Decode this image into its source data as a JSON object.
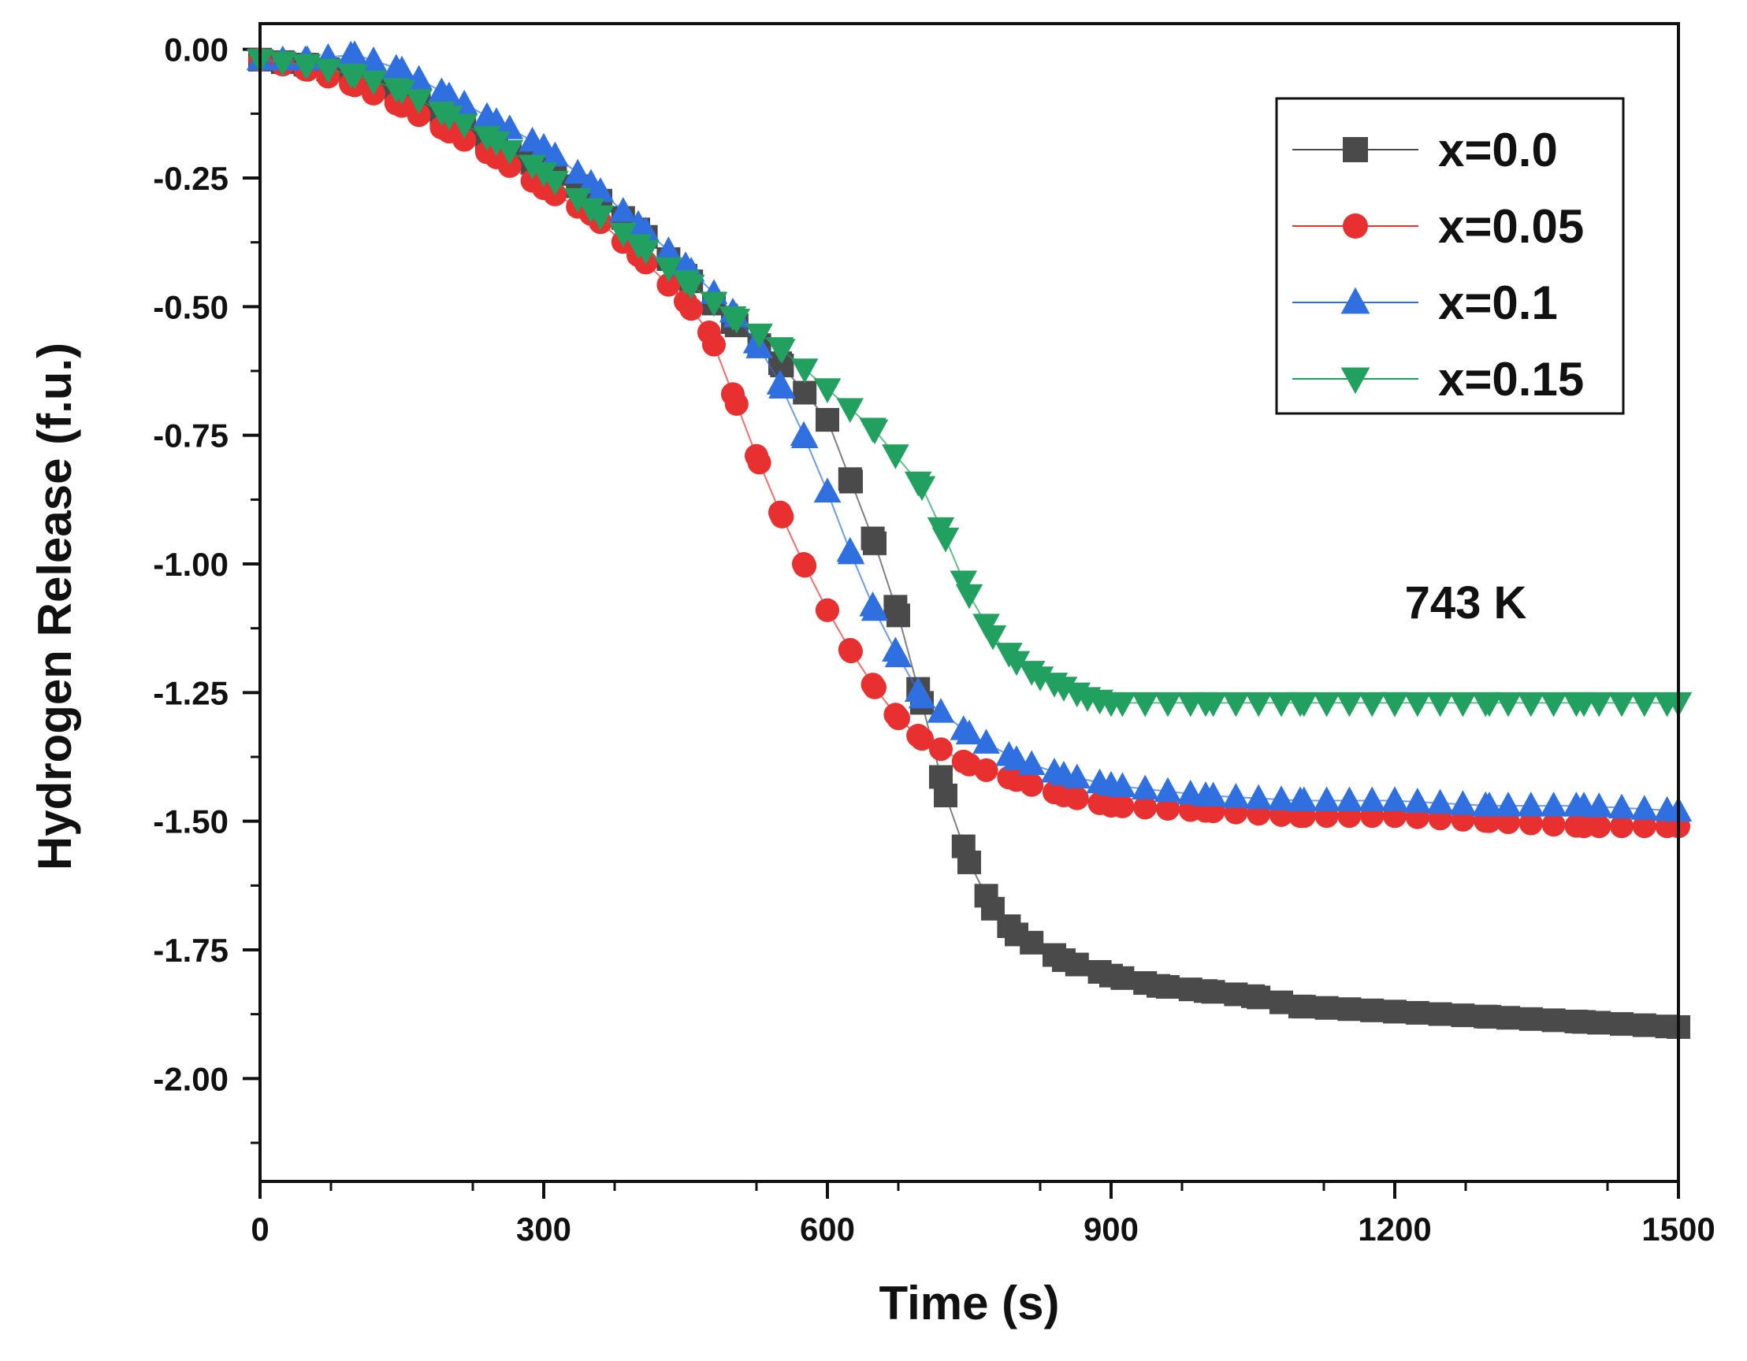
{
  "chart_data": {
    "type": "line",
    "title": "",
    "xlabel": "Time (s)",
    "ylabel": "Hydrogen Release (f.u.)",
    "xlim": [
      0,
      1500
    ],
    "ylim": [
      -2.2,
      0.05
    ],
    "xticks": [
      0,
      300,
      600,
      900,
      1200,
      1500
    ],
    "xtick_labels": [
      "0",
      "300",
      "600",
      "900",
      "1200",
      "1500"
    ],
    "yticks": [
      0.0,
      -0.25,
      -0.5,
      -0.75,
      -1.0,
      -1.25,
      -1.5,
      -1.75,
      -2.0
    ],
    "ytick_labels": [
      "0.00",
      "-0.25",
      "-0.50",
      "-0.75",
      "-1.00",
      "-1.25",
      "-1.50",
      "-1.75",
      "-2.00"
    ],
    "annotation": "743 K",
    "legend_position": "top-right",
    "series": [
      {
        "name": "x=0.0",
        "color": "#4a4a4a",
        "marker": "square",
        "x": [
          0,
          50,
          100,
          150,
          200,
          250,
          300,
          350,
          400,
          450,
          500,
          550,
          600,
          625,
          650,
          675,
          700,
          725,
          750,
          775,
          800,
          850,
          900,
          950,
          1000,
          1050,
          1100,
          1200,
          1300,
          1400,
          1500
        ],
        "y": [
          -0.02,
          -0.03,
          -0.05,
          -0.09,
          -0.14,
          -0.19,
          -0.23,
          -0.28,
          -0.35,
          -0.44,
          -0.53,
          -0.61,
          -0.72,
          -0.84,
          -0.96,
          -1.1,
          -1.27,
          -1.45,
          -1.58,
          -1.67,
          -1.72,
          -1.77,
          -1.8,
          -1.82,
          -1.83,
          -1.84,
          -1.86,
          -1.87,
          -1.88,
          -1.89,
          -1.9
        ]
      },
      {
        "name": "x=0.05",
        "color": "#e83030",
        "marker": "circle",
        "x": [
          0,
          50,
          100,
          150,
          200,
          250,
          300,
          350,
          400,
          450,
          475,
          500,
          525,
          550,
          575,
          600,
          625,
          650,
          675,
          700,
          750,
          800,
          850,
          900,
          1000,
          1100,
          1200,
          1300,
          1400,
          1500
        ],
        "y": [
          -0.02,
          -0.04,
          -0.07,
          -0.11,
          -0.16,
          -0.21,
          -0.27,
          -0.32,
          -0.4,
          -0.49,
          -0.55,
          -0.67,
          -0.79,
          -0.9,
          -1.0,
          -1.09,
          -1.17,
          -1.24,
          -1.3,
          -1.34,
          -1.39,
          -1.42,
          -1.45,
          -1.47,
          -1.48,
          -1.49,
          -1.49,
          -1.5,
          -1.51,
          -1.51
        ]
      },
      {
        "name": "x=0.1",
        "color": "#2f6fe0",
        "marker": "triangle-up",
        "x": [
          0,
          50,
          100,
          150,
          200,
          250,
          300,
          350,
          400,
          450,
          500,
          525,
          550,
          575,
          600,
          625,
          650,
          675,
          700,
          750,
          800,
          850,
          900,
          1000,
          1100,
          1200,
          1300,
          1400,
          1500
        ],
        "y": [
          -0.02,
          -0.02,
          -0.01,
          -0.04,
          -0.09,
          -0.14,
          -0.19,
          -0.26,
          -0.34,
          -0.42,
          -0.51,
          -0.57,
          -0.65,
          -0.75,
          -0.86,
          -0.98,
          -1.09,
          -1.18,
          -1.26,
          -1.33,
          -1.38,
          -1.41,
          -1.43,
          -1.45,
          -1.46,
          -1.46,
          -1.47,
          -1.47,
          -1.48
        ]
      },
      {
        "name": "x=0.15",
        "color": "#22a060",
        "marker": "triangle-down",
        "x": [
          0,
          50,
          100,
          150,
          200,
          250,
          300,
          350,
          400,
          450,
          500,
          550,
          600,
          650,
          700,
          725,
          750,
          775,
          800,
          825,
          850,
          875,
          900,
          1000,
          1100,
          1200,
          1300,
          1400,
          1500
        ],
        "y": [
          -0.02,
          -0.03,
          -0.05,
          -0.08,
          -0.13,
          -0.18,
          -0.24,
          -0.31,
          -0.38,
          -0.45,
          -0.52,
          -0.58,
          -0.66,
          -0.74,
          -0.85,
          -0.95,
          -1.06,
          -1.14,
          -1.19,
          -1.22,
          -1.24,
          -1.26,
          -1.27,
          -1.27,
          -1.27,
          -1.27,
          -1.27,
          -1.27,
          -1.27
        ]
      }
    ]
  }
}
